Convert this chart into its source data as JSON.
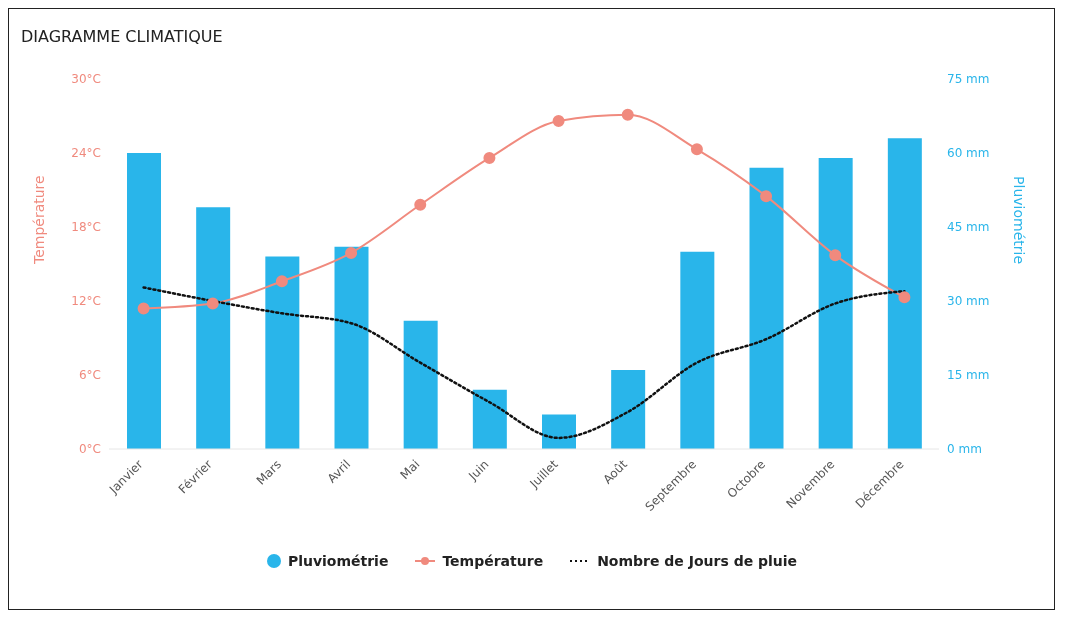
{
  "chart_data": {
    "type": "bar",
    "title": "DIAGRAMME CLIMATIQUE",
    "ylabel": "Température",
    "y2label": "Pluviométrie",
    "categories": [
      "Janvier",
      "Février",
      "Mars",
      "Avril",
      "Mai",
      "Juin",
      "Juillet",
      "Août",
      "Septembre",
      "Octobre",
      "Novembre",
      "Décembre"
    ],
    "series": [
      {
        "name": "Pluviométrie",
        "axis": "y2",
        "color": "#29b5ea",
        "values": [
          60,
          49,
          39,
          41,
          26,
          12,
          7,
          16,
          40,
          57,
          59,
          63
        ]
      },
      {
        "name": "Température",
        "type": "line",
        "axis": "y",
        "color": "#f08a7e",
        "marker": "circle",
        "line_style": "solid",
        "values": [
          11.4,
          11.8,
          13.6,
          15.9,
          19.8,
          23.6,
          26.6,
          27.1,
          24.3,
          20.5,
          15.7,
          12.3
        ]
      },
      {
        "name": "Nombre de Jours de pluie",
        "type": "line",
        "axis": "y",
        "color": "#111111",
        "marker": "none",
        "line_style": "dotted",
        "values": [
          13.1,
          12,
          11,
          10.2,
          7,
          3.8,
          0.9,
          3,
          7,
          8.9,
          11.8,
          12.8
        ]
      }
    ],
    "ylim": [
      0,
      30
    ],
    "yticks": [
      {
        "value": 0,
        "label": "0°C"
      },
      {
        "value": 6,
        "label": "6°C"
      },
      {
        "value": 12,
        "label": "12°C"
      },
      {
        "value": 18,
        "label": "18°C"
      },
      {
        "value": 24,
        "label": "24°C"
      },
      {
        "value": 30,
        "label": "30°C"
      }
    ],
    "y2lim": [
      0,
      75
    ],
    "y2ticks": [
      {
        "value": 0,
        "label": "0 mm"
      },
      {
        "value": 15,
        "label": "15 mm"
      },
      {
        "value": 30,
        "label": "30 mm"
      },
      {
        "value": 45,
        "label": "45 mm"
      },
      {
        "value": 60,
        "label": "60 mm"
      },
      {
        "value": 75,
        "label": "75 mm"
      }
    ],
    "grid": false,
    "legend": "bottom"
  }
}
